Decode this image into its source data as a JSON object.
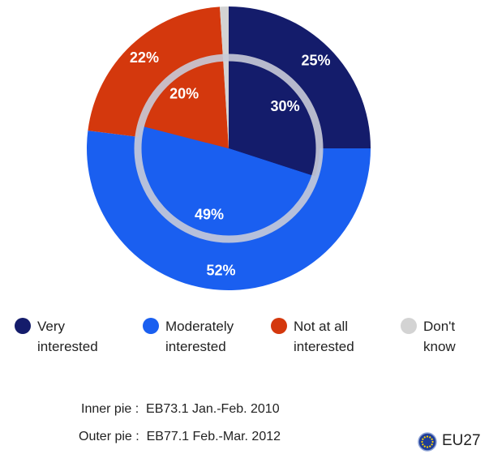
{
  "chart_data": {
    "type": "pie",
    "categories": [
      "Very interested",
      "Moderately interested",
      "Not at all interested",
      "Don't know"
    ],
    "colors": [
      "#141c6b",
      "#1a5ff0",
      "#d4380d",
      "#d3d3d3"
    ],
    "series": [
      {
        "values": [
          30,
          49,
          20,
          1
        ],
        "value_labels": [
          "30%",
          "49%",
          "20%",
          null
        ]
      },
      {
        "values": [
          25,
          52,
          22,
          1
        ],
        "value_labels": [
          "25%",
          "52%",
          "22%",
          null
        ]
      }
    ],
    "notes": [
      "Inner pie :  EB73.1 Jan.-Feb. 2010",
      "Outer pie :  EB77.1 Feb.-Mar. 2012"
    ],
    "region": "EU27"
  }
}
